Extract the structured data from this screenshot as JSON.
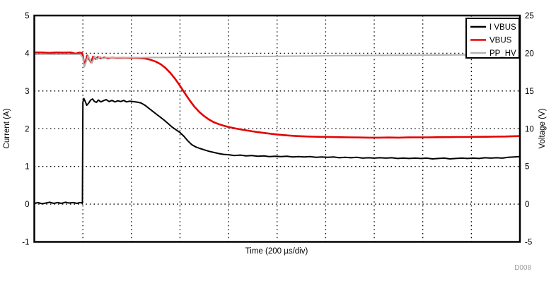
{
  "figure": {
    "note": "D008",
    "background": "#ffffff",
    "frame_color": "#000000",
    "grid_color": "#000000"
  },
  "chart_data": {
    "type": "line",
    "title": "",
    "xlabel": "Time (200 µs/div)",
    "x_divisions": 10,
    "grid": {
      "style": "dotted",
      "on": true
    },
    "left_axis": {
      "label": "Current (A)",
      "min": -1,
      "max": 5,
      "ticks": [
        5,
        4,
        3,
        2,
        1,
        0,
        -1
      ]
    },
    "right_axis": {
      "label": "Voltage (V)",
      "min": -5,
      "max": 25,
      "ticks": [
        25,
        20,
        15,
        10,
        5,
        0,
        -5
      ]
    },
    "legend": {
      "position": "top-right",
      "entries": [
        {
          "label": "I VBUS",
          "color": "#000000"
        },
        {
          "label": "VBUS",
          "color": "#e60000"
        },
        {
          "label": "PP_HV",
          "color": "#b3b3b3"
        }
      ]
    },
    "series": [
      {
        "name": "I VBUS",
        "axis": "left",
        "color": "#000000",
        "width": 2,
        "points": [
          [
            0,
            0.02
          ],
          [
            0.08,
            0.04
          ],
          [
            0.16,
            0.01
          ],
          [
            0.24,
            0.03
          ],
          [
            0.32,
            0.05
          ],
          [
            0.4,
            0.02
          ],
          [
            0.48,
            0.04
          ],
          [
            0.56,
            0.02
          ],
          [
            0.64,
            0.05
          ],
          [
            0.72,
            0.03
          ],
          [
            0.8,
            0.04
          ],
          [
            0.88,
            0.02
          ],
          [
            0.94,
            0.04
          ],
          [
            0.99,
            0.03
          ],
          [
            1,
            2.7
          ],
          [
            1.02,
            2.8
          ],
          [
            1.05,
            2.72
          ],
          [
            1.08,
            2.62
          ],
          [
            1.12,
            2.68
          ],
          [
            1.16,
            2.76
          ],
          [
            1.2,
            2.79
          ],
          [
            1.24,
            2.72
          ],
          [
            1.28,
            2.7
          ],
          [
            1.32,
            2.76
          ],
          [
            1.37,
            2.71
          ],
          [
            1.42,
            2.74
          ],
          [
            1.48,
            2.77
          ],
          [
            1.54,
            2.72
          ],
          [
            1.6,
            2.75
          ],
          [
            1.66,
            2.71
          ],
          [
            1.72,
            2.74
          ],
          [
            1.78,
            2.72
          ],
          [
            1.84,
            2.75
          ],
          [
            1.9,
            2.71
          ],
          [
            1.96,
            2.73
          ],
          [
            2.02,
            2.72
          ],
          [
            2.08,
            2.71
          ],
          [
            2.14,
            2.7
          ],
          [
            2.2,
            2.68
          ],
          [
            2.28,
            2.62
          ],
          [
            2.36,
            2.54
          ],
          [
            2.44,
            2.46
          ],
          [
            2.52,
            2.38
          ],
          [
            2.6,
            2.3
          ],
          [
            2.68,
            2.22
          ],
          [
            2.76,
            2.13
          ],
          [
            2.84,
            2.04
          ],
          [
            2.92,
            1.97
          ],
          [
            3,
            1.9
          ],
          [
            3.08,
            1.8
          ],
          [
            3.16,
            1.68
          ],
          [
            3.24,
            1.58
          ],
          [
            3.32,
            1.52
          ],
          [
            3.4,
            1.48
          ],
          [
            3.5,
            1.44
          ],
          [
            3.6,
            1.4
          ],
          [
            3.7,
            1.37
          ],
          [
            3.8,
            1.34
          ],
          [
            3.9,
            1.32
          ],
          [
            4,
            1.31
          ],
          [
            4.12,
            1.29
          ],
          [
            4.24,
            1.3
          ],
          [
            4.36,
            1.28
          ],
          [
            4.48,
            1.29
          ],
          [
            4.6,
            1.27
          ],
          [
            4.72,
            1.28
          ],
          [
            4.84,
            1.26
          ],
          [
            4.96,
            1.27
          ],
          [
            5.08,
            1.26
          ],
          [
            5.2,
            1.27
          ],
          [
            5.32,
            1.25
          ],
          [
            5.44,
            1.26
          ],
          [
            5.56,
            1.25
          ],
          [
            5.68,
            1.26
          ],
          [
            5.8,
            1.24
          ],
          [
            5.92,
            1.25
          ],
          [
            6.04,
            1.24
          ],
          [
            6.16,
            1.25
          ],
          [
            6.28,
            1.23
          ],
          [
            6.4,
            1.24
          ],
          [
            6.52,
            1.23
          ],
          [
            6.64,
            1.24
          ],
          [
            6.76,
            1.22
          ],
          [
            6.88,
            1.23
          ],
          [
            7,
            1.22
          ],
          [
            7.12,
            1.23
          ],
          [
            7.24,
            1.22
          ],
          [
            7.36,
            1.23
          ],
          [
            7.48,
            1.21
          ],
          [
            7.6,
            1.22
          ],
          [
            7.72,
            1.21
          ],
          [
            7.84,
            1.22
          ],
          [
            7.96,
            1.21
          ],
          [
            8.08,
            1.22
          ],
          [
            8.2,
            1.2
          ],
          [
            8.32,
            1.21
          ],
          [
            8.44,
            1.22
          ],
          [
            8.56,
            1.2
          ],
          [
            8.68,
            1.21
          ],
          [
            8.8,
            1.22
          ],
          [
            8.92,
            1.21
          ],
          [
            9.04,
            1.22
          ],
          [
            9.16,
            1.21
          ],
          [
            9.28,
            1.23
          ],
          [
            9.4,
            1.22
          ],
          [
            9.52,
            1.23
          ],
          [
            9.64,
            1.22
          ],
          [
            9.76,
            1.24
          ],
          [
            9.88,
            1.25
          ],
          [
            10,
            1.26
          ]
        ]
      },
      {
        "name": "VBUS",
        "axis": "right",
        "color": "#e60000",
        "width": 2.6,
        "points": [
          [
            0,
            20.1
          ],
          [
            0.15,
            20.1
          ],
          [
            0.3,
            20.05
          ],
          [
            0.45,
            20.1
          ],
          [
            0.6,
            20.08
          ],
          [
            0.75,
            20.1
          ],
          [
            0.85,
            19.95
          ],
          [
            0.92,
            20.08
          ],
          [
            0.98,
            20.05
          ],
          [
            1,
            19.7
          ],
          [
            1.03,
            18.4
          ],
          [
            1.06,
            19
          ],
          [
            1.09,
            19.7
          ],
          [
            1.13,
            19.2
          ],
          [
            1.17,
            18.8
          ],
          [
            1.21,
            19.55
          ],
          [
            1.26,
            19.25
          ],
          [
            1.31,
            19.5
          ],
          [
            1.37,
            19.35
          ],
          [
            1.44,
            19.42
          ],
          [
            1.52,
            19.36
          ],
          [
            1.6,
            19.4
          ],
          [
            1.7,
            19.38
          ],
          [
            1.8,
            19.4
          ],
          [
            1.9,
            19.38
          ],
          [
            2,
            19.4
          ],
          [
            2.1,
            19.38
          ],
          [
            2.2,
            19.34
          ],
          [
            2.3,
            19.28
          ],
          [
            2.4,
            19.12
          ],
          [
            2.5,
            18.9
          ],
          [
            2.6,
            18.55
          ],
          [
            2.7,
            18.05
          ],
          [
            2.8,
            17.4
          ],
          [
            2.9,
            16.6
          ],
          [
            3,
            15.7
          ],
          [
            3.1,
            14.7
          ],
          [
            3.2,
            13.75
          ],
          [
            3.3,
            12.9
          ],
          [
            3.4,
            12.2
          ],
          [
            3.5,
            11.65
          ],
          [
            3.6,
            11.2
          ],
          [
            3.7,
            10.85
          ],
          [
            3.8,
            10.6
          ],
          [
            3.9,
            10.4
          ],
          [
            4,
            10.22
          ],
          [
            4.15,
            10.02
          ],
          [
            4.3,
            9.85
          ],
          [
            4.45,
            9.7
          ],
          [
            4.6,
            9.55
          ],
          [
            4.75,
            9.42
          ],
          [
            4.9,
            9.3
          ],
          [
            5.05,
            9.2
          ],
          [
            5.2,
            9.12
          ],
          [
            5.35,
            9.05
          ],
          [
            5.5,
            9
          ],
          [
            5.7,
            8.95
          ],
          [
            5.9,
            8.92
          ],
          [
            6.1,
            8.9
          ],
          [
            6.3,
            8.87
          ],
          [
            6.5,
            8.85
          ],
          [
            6.7,
            8.83
          ],
          [
            6.9,
            8.82
          ],
          [
            7.1,
            8.82
          ],
          [
            7.3,
            8.83
          ],
          [
            7.5,
            8.82
          ],
          [
            7.7,
            8.84
          ],
          [
            7.9,
            8.85
          ],
          [
            8.1,
            8.85
          ],
          [
            8.3,
            8.87
          ],
          [
            8.5,
            8.88
          ],
          [
            8.7,
            8.9
          ],
          [
            8.9,
            8.9
          ],
          [
            9.1,
            8.92
          ],
          [
            9.3,
            8.93
          ],
          [
            9.5,
            8.95
          ],
          [
            9.7,
            8.97
          ],
          [
            9.85,
            9
          ],
          [
            10,
            9.02
          ]
        ]
      },
      {
        "name": "PP_HV",
        "axis": "right",
        "color": "#b3b3b3",
        "width": 2,
        "points": [
          [
            0,
            19.85
          ],
          [
            0.2,
            19.87
          ],
          [
            0.4,
            19.84
          ],
          [
            0.6,
            19.86
          ],
          [
            0.8,
            19.85
          ],
          [
            0.95,
            19.86
          ],
          [
            1,
            19.4
          ],
          [
            1.03,
            18.2
          ],
          [
            1.07,
            18.9
          ],
          [
            1.11,
            19.7
          ],
          [
            1.15,
            19.1
          ],
          [
            1.19,
            18.7
          ],
          [
            1.24,
            19.6
          ],
          [
            1.29,
            19.2
          ],
          [
            1.35,
            19.55
          ],
          [
            1.42,
            19.3
          ],
          [
            1.5,
            19.45
          ],
          [
            1.6,
            19.38
          ],
          [
            1.72,
            19.44
          ],
          [
            1.85,
            19.4
          ],
          [
            2,
            19.44
          ],
          [
            2.2,
            19.42
          ],
          [
            2.4,
            19.45
          ],
          [
            2.6,
            19.44
          ],
          [
            2.8,
            19.46
          ],
          [
            3,
            19.48
          ],
          [
            3.25,
            19.48
          ],
          [
            3.5,
            19.5
          ],
          [
            3.75,
            19.52
          ],
          [
            4,
            19.53
          ],
          [
            4.25,
            19.55
          ],
          [
            4.5,
            19.57
          ],
          [
            4.75,
            19.58
          ],
          [
            5,
            19.6
          ],
          [
            5.25,
            19.62
          ],
          [
            5.5,
            19.63
          ],
          [
            5.75,
            19.65
          ],
          [
            6,
            19.66
          ],
          [
            6.25,
            19.68
          ],
          [
            6.5,
            19.69
          ],
          [
            6.75,
            19.7
          ],
          [
            7,
            19.71
          ],
          [
            7.25,
            19.72
          ],
          [
            7.5,
            19.73
          ],
          [
            7.75,
            19.74
          ],
          [
            8,
            19.75
          ],
          [
            8.25,
            19.76
          ],
          [
            8.5,
            19.77
          ],
          [
            8.75,
            19.78
          ],
          [
            9,
            19.79
          ],
          [
            9.25,
            19.8
          ],
          [
            9.5,
            19.81
          ],
          [
            9.75,
            19.82
          ],
          [
            10,
            19.83
          ]
        ]
      }
    ]
  }
}
